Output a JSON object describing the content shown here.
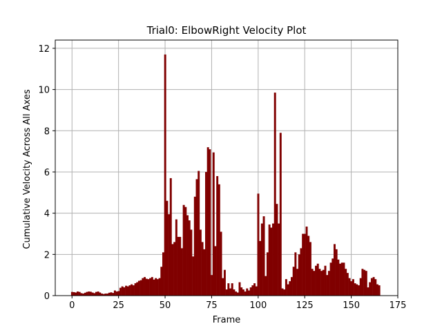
{
  "chart_data": {
    "type": "bar",
    "title": "Trial0: ElbowRight Velocity Plot",
    "xlabel": "Frame",
    "ylabel": "Cumulative Velocity Across All Axes",
    "xlim": [
      -9,
      175
    ],
    "ylim": [
      0,
      12.4
    ],
    "xticks": [
      0,
      25,
      50,
      75,
      100,
      125,
      150,
      175
    ],
    "yticks": [
      0,
      2,
      4,
      6,
      8,
      10,
      12
    ],
    "grid": true,
    "bar_color": "#800000",
    "x_start": 0,
    "values": [
      0.18,
      0.17,
      0.15,
      0.2,
      0.18,
      0.12,
      0.1,
      0.14,
      0.18,
      0.2,
      0.19,
      0.15,
      0.12,
      0.18,
      0.2,
      0.15,
      0.1,
      0.08,
      0.1,
      0.1,
      0.14,
      0.16,
      0.13,
      0.25,
      0.2,
      0.22,
      0.38,
      0.45,
      0.4,
      0.48,
      0.45,
      0.5,
      0.55,
      0.5,
      0.6,
      0.65,
      0.72,
      0.75,
      0.85,
      0.9,
      0.82,
      0.8,
      0.85,
      0.9,
      0.78,
      0.85,
      0.8,
      0.85,
      1.4,
      2.1,
      11.7,
      4.6,
      3.95,
      5.7,
      2.5,
      2.6,
      3.7,
      2.85,
      2.85,
      2.3,
      4.4,
      4.3,
      3.9,
      3.65,
      3.2,
      1.9,
      4.8,
      5.65,
      6.05,
      3.2,
      2.6,
      2.25,
      6.0,
      7.2,
      7.1,
      1.0,
      6.95,
      2.4,
      5.8,
      5.4,
      3.1,
      0.85,
      1.25,
      0.3,
      0.6,
      0.35,
      0.6,
      0.3,
      0.2,
      0.15,
      0.65,
      0.4,
      0.3,
      0.2,
      0.35,
      0.25,
      0.4,
      0.5,
      0.6,
      0.45,
      4.95,
      2.65,
      3.5,
      3.85,
      0.95,
      2.1,
      3.45,
      3.3,
      3.5,
      9.85,
      4.45,
      3.5,
      7.9,
      0.35,
      0.3,
      0.8,
      0.55,
      0.7,
      0.9,
      1.4,
      2.1,
      1.3,
      2.0,
      2.3,
      3.0,
      3.0,
      3.35,
      2.9,
      2.6,
      1.3,
      1.2,
      1.45,
      1.55,
      1.3,
      1.2,
      1.25,
      1.45,
      1.0,
      1.2,
      1.6,
      1.8,
      2.5,
      2.25,
      1.75,
      1.55,
      1.6,
      1.6,
      1.3,
      1.1,
      0.85,
      0.7,
      0.8,
      0.6,
      0.55,
      0.5,
      0.85,
      1.3,
      1.25,
      1.2,
      0.4,
      0.65,
      0.85,
      0.9,
      0.8,
      0.55,
      0.5
    ]
  }
}
